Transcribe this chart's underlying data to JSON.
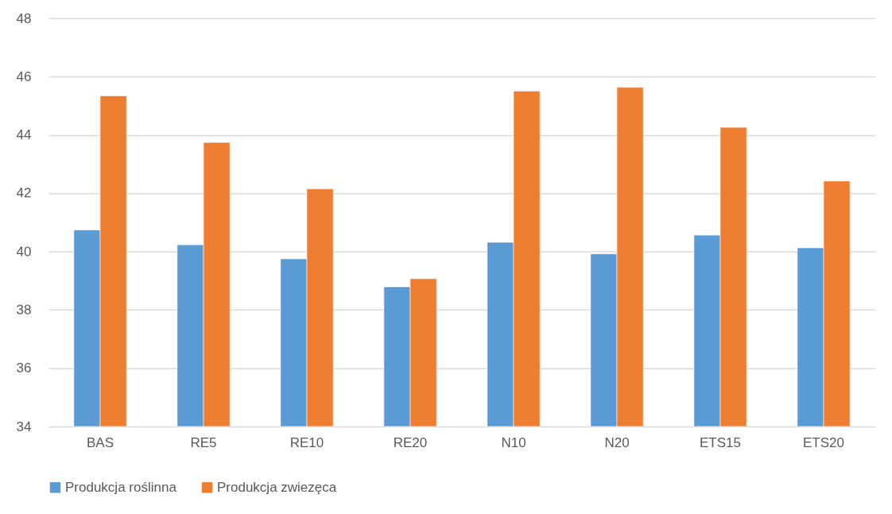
{
  "chart_data": {
    "type": "bar",
    "categories": [
      "BAS",
      "RE5",
      "RE10",
      "RE20",
      "N10",
      "N20",
      "ETS15",
      "ETS20"
    ],
    "series": [
      {
        "name": "Produkcja roślinna",
        "color": "#5b9bd5",
        "values": [
          40.74,
          40.23,
          39.75,
          38.79,
          40.32,
          39.92,
          40.56,
          40.13
        ]
      },
      {
        "name": "Produkcja zwiezęca",
        "color": "#ed7d31",
        "values": [
          45.34,
          43.74,
          42.15,
          39.07,
          45.5,
          45.63,
          44.26,
          42.42
        ]
      }
    ],
    "ylim": [
      34,
      48
    ],
    "yticks": [
      34,
      36,
      38,
      40,
      42,
      44,
      46,
      48
    ],
    "grid": "y",
    "legend": "bottom"
  }
}
